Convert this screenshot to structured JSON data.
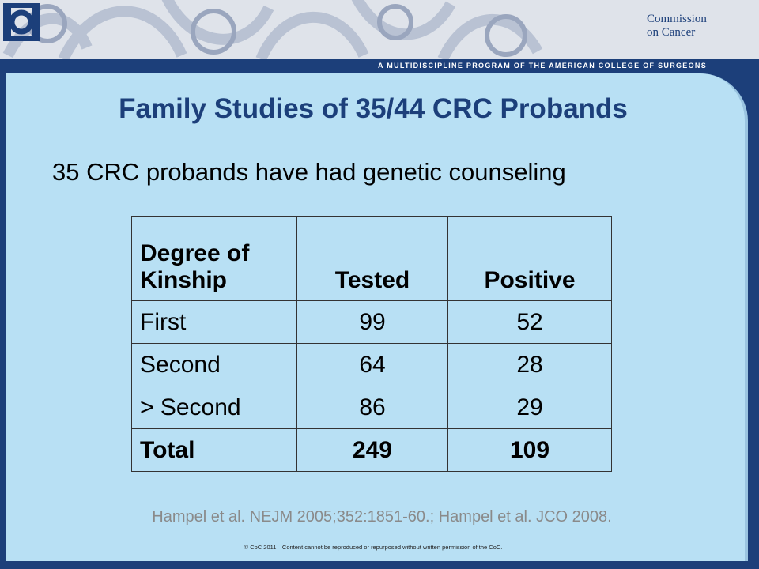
{
  "header": {
    "logo_text": "Commission\non Cancer",
    "tagline": "A MULTIDISCIPLINE PROGRAM OF THE AMERICAN COLLEGE OF SURGEONS"
  },
  "slide": {
    "title": "Family Studies of 35/44 CRC Probands",
    "subtitle": "35 CRC probands have had genetic counseling"
  },
  "table": {
    "headers": [
      "Degree of",
      "Kinship",
      "Tested",
      "Positive"
    ],
    "rows": [
      [
        "First",
        "99",
        "52"
      ],
      [
        "Second",
        "64",
        "28"
      ],
      [
        "> Second",
        "86",
        "29"
      ]
    ],
    "total": [
      "Total",
      "249",
      "109"
    ]
  },
  "footer": {
    "reference": "Hampel et al. NEJM 2005;352:1851-60.;  Hampel et al. JCO 2008.",
    "copyright": "© CoC 2011—Content cannot be reproduced or repurposed without written permission of the CoC."
  },
  "colors": {
    "brand_navy": "#1c3f7a",
    "panel_blue": "#b8e0f4"
  }
}
